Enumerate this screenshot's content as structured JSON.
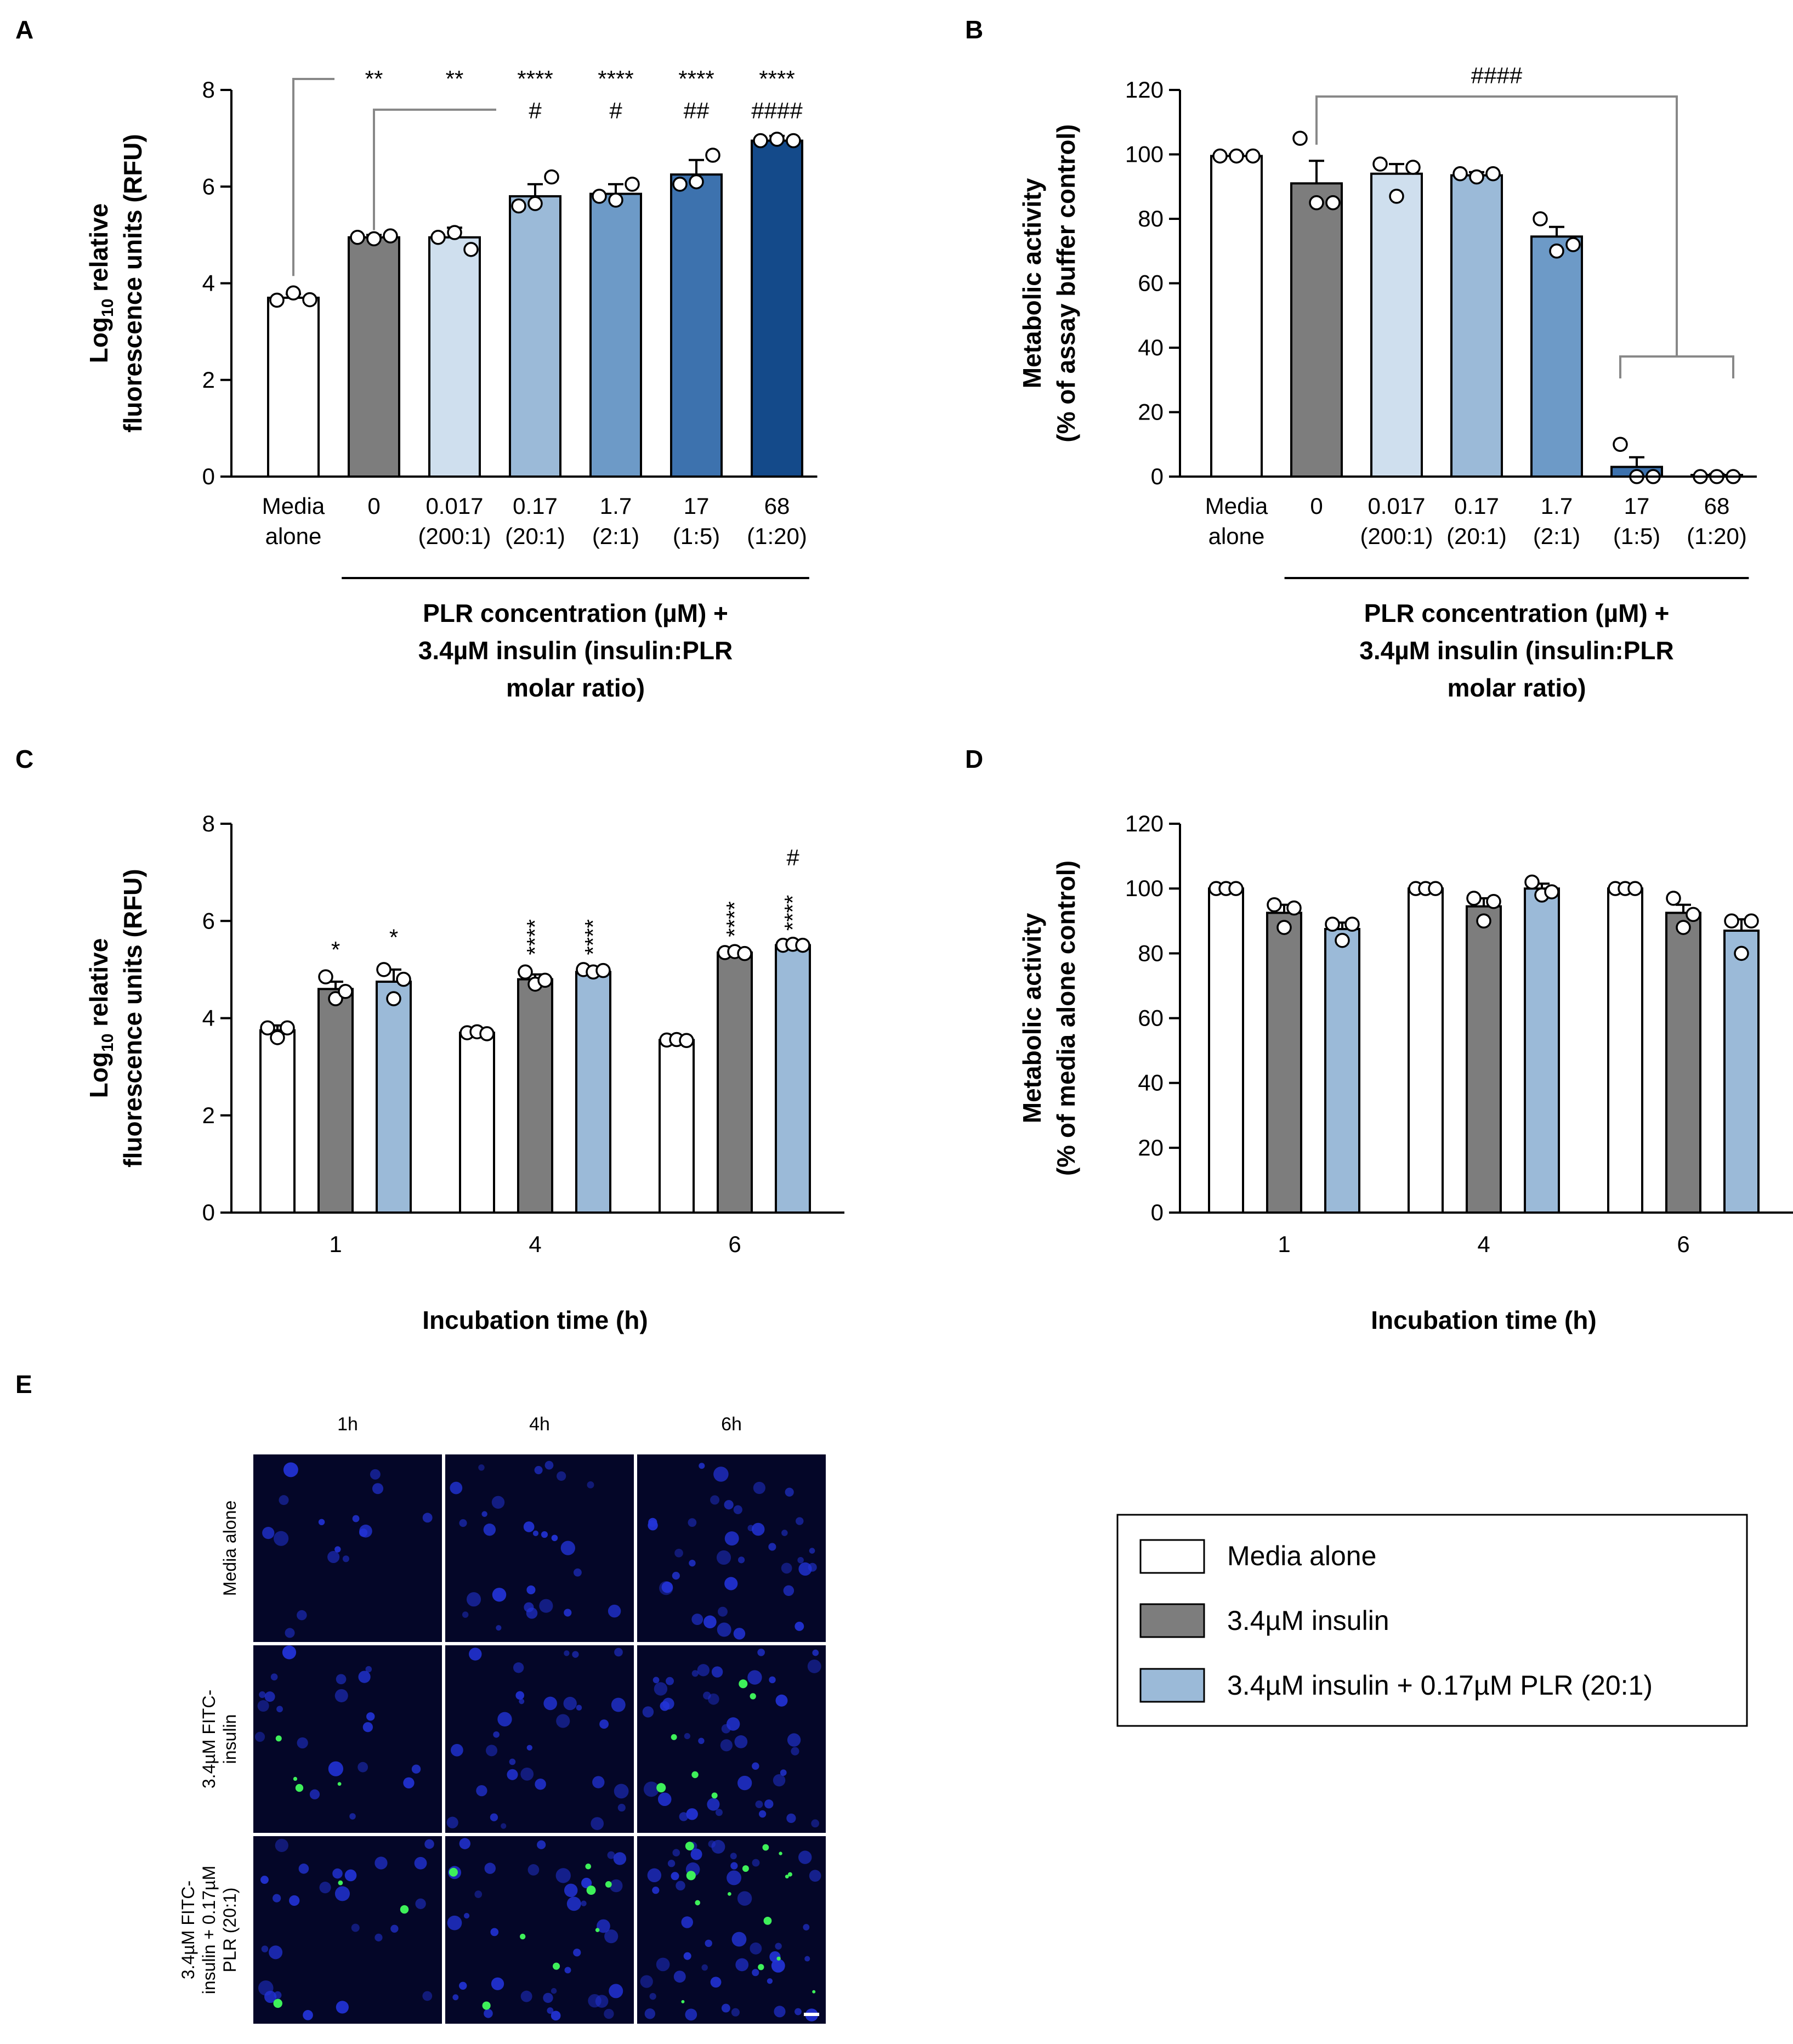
{
  "panels": {
    "A": "A",
    "B": "B",
    "C": "C",
    "D": "D",
    "E": "E"
  },
  "colors": {
    "media": "#ffffff",
    "insulin": "#7d7d7d",
    "plr1": "#cfdfee",
    "plr2": "#9bbad8",
    "plr3": "#6d9ac7",
    "plr4": "#3d72ae",
    "plr5": "#144a8a",
    "combo": "#9bbad8",
    "nucleus": "#2233d6",
    "fitc": "#3ef05a"
  },
  "chart_data": [
    {
      "id": "A",
      "type": "bar",
      "ylabel_prefix": "Log",
      "ylabel_sub": "10",
      "ylabel_rest": " relative",
      "ylabel_line2": "fluorescence units (RFU)",
      "ylim": [
        0,
        8
      ],
      "yticks": [
        "0",
        "2",
        "4",
        "6",
        "8"
      ],
      "categories": [
        [
          "Media",
          "alone"
        ],
        [
          "0"
        ],
        [
          "0.017",
          "(200:1)"
        ],
        [
          "0.17",
          "(20:1)"
        ],
        [
          "1.7",
          "(2:1)"
        ],
        [
          "17",
          "(1:5)"
        ],
        [
          "68",
          "(1:20)"
        ]
      ],
      "xlabel": [
        "PLR concentration (µM) +",
        "3.4µM insulin (insulin:PLR",
        "molar ratio)"
      ],
      "values": [
        3.7,
        4.95,
        4.95,
        5.8,
        5.85,
        6.25,
        6.95
      ],
      "errors": [
        0.08,
        0.05,
        0.2,
        0.25,
        0.2,
        0.3,
        0.1
      ],
      "points": [
        [
          3.65,
          3.8,
          3.66
        ],
        [
          4.95,
          4.92,
          4.98
        ],
        [
          4.95,
          5.05,
          4.7
        ],
        [
          5.6,
          5.65,
          6.2
        ],
        [
          5.8,
          5.72,
          6.05
        ],
        [
          6.05,
          6.1,
          6.65
        ],
        [
          6.95,
          6.98,
          6.95
        ]
      ],
      "annotations": [
        [
          "**"
        ],
        [
          "**"
        ],
        [
          "****",
          "#"
        ],
        [
          "****",
          "#"
        ],
        [
          "****",
          "##"
        ],
        [
          "****",
          "####"
        ]
      ],
      "color_keys": [
        "media",
        "insulin",
        "plr1",
        "plr2",
        "plr3",
        "plr4",
        "plr5"
      ]
    },
    {
      "id": "B",
      "type": "bar",
      "ylabel_line1": "Metabolic activity",
      "ylabel_line2": "(% of assay buffer control)",
      "ylim": [
        0,
        120
      ],
      "yticks": [
        "0",
        "20",
        "40",
        "60",
        "80",
        "100",
        "120"
      ],
      "categories": [
        [
          "Media",
          "alone"
        ],
        [
          "0"
        ],
        [
          "0.017",
          "(200:1)"
        ],
        [
          "0.17",
          "(20:1)"
        ],
        [
          "1.7",
          "(2:1)"
        ],
        [
          "17",
          "(1:5)"
        ],
        [
          "68",
          "(1:20)"
        ]
      ],
      "xlabel": [
        "PLR concentration (µM) +",
        "3.4µM insulin (insulin:PLR",
        "molar ratio)"
      ],
      "values": [
        99.5,
        91,
        94,
        93.5,
        74.5,
        3,
        0.5
      ],
      "errors": [
        0.5,
        7,
        3,
        1,
        3,
        3,
        0.3
      ],
      "points": [
        [
          99.5,
          99.5,
          99.5
        ],
        [
          105,
          85,
          85
        ],
        [
          97,
          87,
          96
        ],
        [
          94,
          93,
          94
        ],
        [
          80,
          70,
          72
        ],
        [
          10,
          0,
          0
        ],
        [
          0,
          0,
          0
        ]
      ],
      "annotations": [
        [
          "####"
        ]
      ],
      "color_keys": [
        "media",
        "insulin",
        "plr1",
        "plr2",
        "plr3",
        "plr4",
        "plr5"
      ]
    },
    {
      "id": "C",
      "type": "bar",
      "ylabel_prefix": "Log",
      "ylabel_sub": "10",
      "ylabel_rest": " relative",
      "ylabel_line2": "fluorescence units (RFU)",
      "ylim": [
        0,
        8
      ],
      "yticks": [
        "0",
        "2",
        "4",
        "6",
        "8"
      ],
      "categories": [
        "1",
        "4",
        "6"
      ],
      "xlabel": "Incubation time (h)",
      "series": [
        {
          "name": "Media alone",
          "values": [
            3.75,
            3.7,
            3.55
          ],
          "errors": [
            0.1,
            0.05,
            0.05
          ],
          "points": [
            [
              3.8,
              3.6,
              3.8
            ],
            [
              3.7,
              3.72,
              3.68
            ],
            [
              3.55,
              3.56,
              3.54
            ]
          ]
        },
        {
          "name": "3.4µM insulin",
          "values": [
            4.6,
            4.8,
            5.35
          ],
          "errors": [
            0.15,
            0.1,
            0.05
          ],
          "points": [
            [
              4.85,
              4.4,
              4.55
            ],
            [
              4.95,
              4.7,
              4.78
            ],
            [
              5.35,
              5.37,
              5.33
            ]
          ]
        },
        {
          "name": "3.4µM insulin + 0.17µM PLR (20:1)",
          "values": [
            4.75,
            4.95,
            5.5
          ],
          "errors": [
            0.25,
            0.05,
            0.03
          ],
          "points": [
            [
              5.0,
              4.4,
              4.8
            ],
            [
              5.0,
              4.95,
              4.98
            ],
            [
              5.5,
              5.52,
              5.5
            ]
          ]
        }
      ],
      "annotations": [
        [
          "",
          "*",
          "*"
        ],
        [
          "",
          "****",
          "****"
        ],
        [
          "",
          "****",
          "****",
          "#"
        ]
      ]
    },
    {
      "id": "D",
      "type": "bar",
      "ylabel_line1": "Metabolic activity",
      "ylabel_line2": "(% of media alone control)",
      "ylim": [
        0,
        120
      ],
      "yticks": [
        "0",
        "20",
        "40",
        "60",
        "80",
        "100",
        "120"
      ],
      "categories": [
        "1",
        "4",
        "6"
      ],
      "xlabel": "Incubation time (h)",
      "series": [
        {
          "name": "Media alone",
          "values": [
            100,
            100,
            100
          ],
          "errors": [
            0,
            0,
            0
          ],
          "points": [
            [
              100,
              100,
              100
            ],
            [
              100,
              100,
              100
            ],
            [
              100,
              100,
              100
            ]
          ]
        },
        {
          "name": "3.4µM insulin",
          "values": [
            92.5,
            94.5,
            92.5
          ],
          "errors": [
            2.5,
            2.5,
            2.5
          ],
          "points": [
            [
              95,
              88,
              94
            ],
            [
              97,
              90,
              96
            ],
            [
              97,
              88,
              92
            ]
          ]
        },
        {
          "name": "3.4µM insulin + 0.17µM PLR (20:1)",
          "values": [
            87.5,
            100,
            87
          ],
          "errors": [
            2,
            1.5,
            3.5
          ],
          "points": [
            [
              89,
              84,
              89
            ],
            [
              102,
              98,
              99
            ],
            [
              90,
              80,
              90
            ]
          ]
        }
      ]
    }
  ],
  "panelE": {
    "columns": [
      "1h",
      "4h",
      "6h"
    ],
    "rows": [
      [
        "Media alone"
      ],
      [
        "3.4µM FITC-",
        "insulin"
      ],
      [
        "3.4µM FITC-",
        "insulin + 0.17µM",
        "PLR (20:1)"
      ]
    ],
    "green_spots": [
      [
        0,
        0,
        0
      ],
      [
        4,
        0,
        6
      ],
      [
        3,
        8,
        14
      ]
    ]
  },
  "legend": {
    "items": [
      {
        "label": "Media alone",
        "color_key": "media"
      },
      {
        "label": "3.4µM insulin",
        "color_key": "insulin"
      },
      {
        "label": "3.4µM insulin + 0.17µM PLR (20:1)",
        "color_key": "combo"
      }
    ]
  }
}
